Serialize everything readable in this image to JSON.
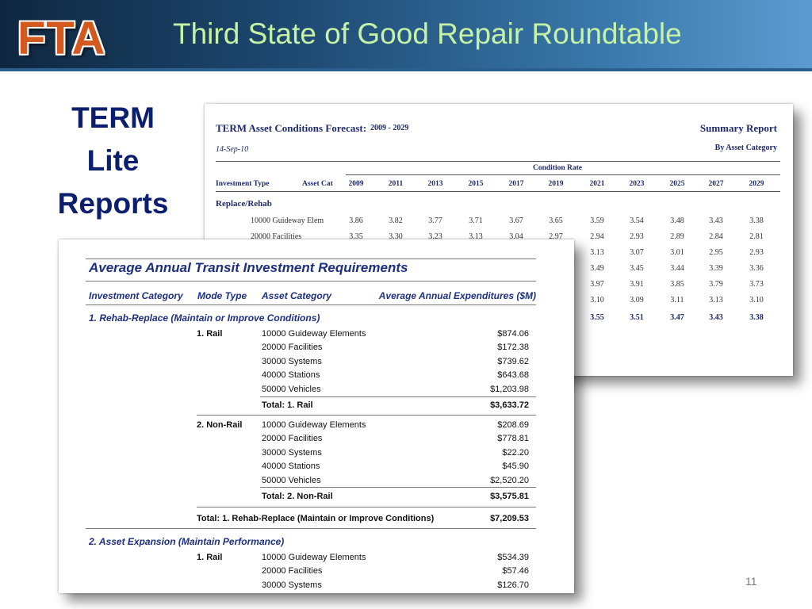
{
  "header": {
    "logo_text": "FTA",
    "title": "Third State of Good Repair Roundtable"
  },
  "side_heading": [
    "TERM",
    "Lite",
    "Reports"
  ],
  "page_number": "11",
  "back_report": {
    "title": "TERM Asset Conditions Forecast:",
    "range": "2009 - 2029",
    "summary": "Summary Report",
    "date": "14-Sep-10",
    "by": "By Asset Category",
    "group_header": "Condition Rate",
    "col_type": "Investment Type",
    "col_cat": "Asset Cat",
    "years": [
      "2009",
      "2011",
      "2013",
      "2015",
      "2017",
      "2019",
      "2021",
      "2023",
      "2025",
      "2027",
      "2029"
    ],
    "section": "Replace/Rehab",
    "rows": [
      {
        "label": "10000  Guideway Elem",
        "values": [
          "3.86",
          "3.82",
          "3.77",
          "3.71",
          "3.67",
          "3.65",
          "3.59",
          "3.54",
          "3.48",
          "3.43",
          "3.38"
        ]
      },
      {
        "label": "20000  Facilities",
        "values": [
          "3.35",
          "3.30",
          "3.23",
          "3.13",
          "3.04",
          "2.97",
          "2.94",
          "2.93",
          "2.89",
          "2.84",
          "2.81"
        ]
      },
      {
        "label": "",
        "values": [
          "",
          "",
          "",
          "",
          "",
          "",
          "3.13",
          "3.07",
          "3.01",
          "2.95",
          "2.93"
        ]
      },
      {
        "label": "",
        "values": [
          "",
          "",
          "",
          "",
          "",
          "",
          "3.49",
          "3.45",
          "3.44",
          "3.39",
          "3.36"
        ]
      },
      {
        "label": "",
        "values": [
          "",
          "",
          "",
          "",
          "",
          "",
          "3.97",
          "3.91",
          "3.85",
          "3.79",
          "3.73"
        ]
      },
      {
        "label": "",
        "values": [
          "",
          "",
          "",
          "",
          "",
          "",
          "3.10",
          "3.09",
          "3.11",
          "3.13",
          "3.10"
        ]
      },
      {
        "label": "",
        "values": [
          "",
          "",
          "",
          "",
          "",
          "",
          "3.55",
          "3.51",
          "3.47",
          "3.43",
          "3.38"
        ],
        "bold": true
      }
    ]
  },
  "front_report": {
    "title": "Average Annual Transit Investment Requirements",
    "columns": [
      "Investment Category",
      "Mode Type",
      "Asset Category",
      "Average Annual Expenditures ($M)"
    ],
    "section1": "1. Rehab-Replace  (Maintain or Improve Conditions)",
    "rail": {
      "mode": "1. Rail",
      "items": [
        {
          "name": "10000  Guideway Elements",
          "amount": "$874.06"
        },
        {
          "name": "20000  Facilities",
          "amount": "$172.38"
        },
        {
          "name": "30000  Systems",
          "amount": "$739.62"
        },
        {
          "name": "40000  Stations",
          "amount": "$643.68"
        },
        {
          "name": "50000  Vehicles",
          "amount": "$1,203.98"
        }
      ],
      "total_label": "Total: 1. Rail",
      "total_amount": "$3,633.72"
    },
    "nonrail": {
      "mode": "2. Non-Rail",
      "items": [
        {
          "name": "10000  Guideway Elements",
          "amount": "$208.69"
        },
        {
          "name": "20000  Facilities",
          "amount": "$778.81"
        },
        {
          "name": "30000  Systems",
          "amount": "$22.20"
        },
        {
          "name": "40000  Stations",
          "amount": "$45.90"
        },
        {
          "name": "50000  Vehicles",
          "amount": "$2,520.20"
        }
      ],
      "total_label": "Total: 2. Non-Rail",
      "total_amount": "$3,575.81"
    },
    "section1_total_label": "Total: 1. Rehab-Replace  (Maintain or Improve Conditions)",
    "section1_total_amount": "$7,209.53",
    "section2": "2. Asset Expansion  (Maintain Performance)",
    "rail2": {
      "mode": "1. Rail",
      "items": [
        {
          "name": "10000  Guideway Elements",
          "amount": "$534.39"
        },
        {
          "name": "20000  Facilities",
          "amount": "$57.46"
        },
        {
          "name": "30000  Systems",
          "amount": "$126.70"
        }
      ]
    }
  }
}
